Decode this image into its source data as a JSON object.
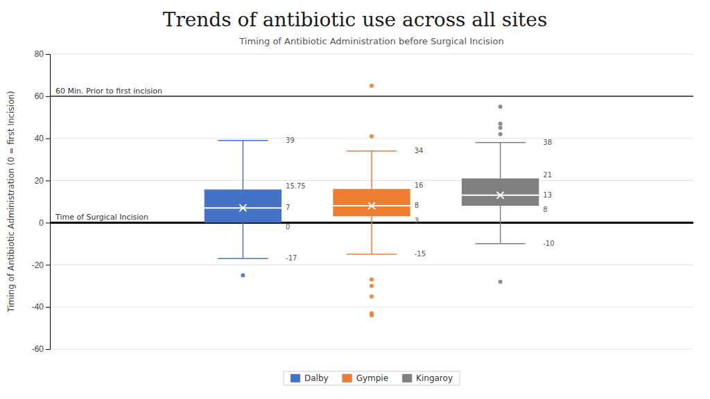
{
  "chart_data": {
    "type": "box",
    "title": "Trends of antibiotic use across all sites",
    "subtitle": "Timing of Antibiotic Administration before Surgical Incision",
    "ylabel": "Timing of Antibiotic Administration (0 = first Incision)",
    "ylim": [
      -60,
      80
    ],
    "yticks": [
      -60,
      -40,
      -20,
      0,
      20,
      40,
      60,
      80
    ],
    "grid": true,
    "legend": "bottom",
    "data_labels": true,
    "tick_labels": "y",
    "annotations": [
      {
        "y": 60,
        "text": "60 Min. Prior to first incision"
      },
      {
        "y": 0,
        "text": "Time of Surgical Incision"
      }
    ],
    "series": [
      {
        "name": "Dalby",
        "color": "#4472c4",
        "q1": 0,
        "q3": 15.75,
        "median": 7,
        "mean": 7,
        "whisker_low": -17,
        "whisker_high": 39,
        "outliers": [
          -25
        ]
      },
      {
        "name": "Gympie",
        "color": "#ed7d31",
        "q1": 3,
        "q3": 16,
        "median": 8,
        "mean": 8,
        "whisker_low": -15,
        "whisker_high": 34,
        "outliers": [
          65,
          41,
          -27,
          -30,
          -35,
          -43,
          -44
        ]
      },
      {
        "name": "Kingaroy",
        "color": "#808080",
        "q1": 8,
        "q3": 21,
        "median": 13,
        "mean": 13,
        "whisker_low": -10,
        "whisker_high": 38,
        "outliers": [
          55,
          47,
          45,
          42,
          -28
        ]
      }
    ]
  }
}
